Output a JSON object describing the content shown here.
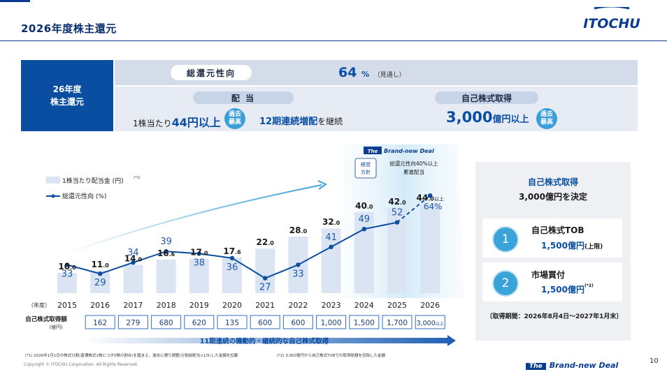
{
  "page": {
    "title": "2026年度株主還元",
    "logo_text": "ITOCHU",
    "page_number": "10",
    "copyright": "Copyright © ITOCHU Corporation. All Rights Reserved.",
    "footer_brand": "Brand-new Deal",
    "footer_brand_prefix": "The"
  },
  "summary": {
    "left_label_line1": "26年度",
    "left_label_line2": "株主還元",
    "total_return_label": "総還元性向",
    "total_return_value": "64",
    "total_return_unit": "%",
    "total_return_note": "（見通し）",
    "dividend_label": "配 当",
    "dividend_text_prefix": "1株当たり",
    "dividend_value": "44円以上",
    "dividend_badge_line1": "過去",
    "dividend_badge_line2": "最高",
    "dividend_streak": "12期連続増配",
    "dividend_streak_suffix": "を継続",
    "buyback_label": "自己株式取得",
    "buyback_value": "3,000",
    "buyback_unit": "億円以上",
    "buyback_badge_line1": "過去",
    "buyback_badge_line2": "最高"
  },
  "chart_header": {
    "brand_prefix": "The",
    "brand": "Brand-new Deal",
    "policy_box_line1": "経営",
    "policy_box_line2": "方針",
    "policy_text_line1": "総還元性向40%以上",
    "policy_text_line2": "累進配当"
  },
  "chart_data": {
    "type": "bar",
    "categories": [
      "2015",
      "2016",
      "2017",
      "2018",
      "2019",
      "2020",
      "2021",
      "2022",
      "2023",
      "2024",
      "2025",
      "2026"
    ],
    "x_axis_label": "（年度）",
    "series": [
      {
        "name": "1株当たり配当金 (円)",
        "values": [
          10.0,
          11.0,
          14.0,
          16.6,
          17.0,
          17.6,
          22.0,
          28.0,
          32.0,
          40.0,
          42.0,
          44.0
        ]
      },
      {
        "name": "総還元性向 (%)",
        "values": [
          33,
          29,
          34,
          39,
          38,
          36,
          27,
          33,
          41,
          49,
          52,
          64
        ]
      }
    ],
    "dividend_labels": [
      {
        "int": "10",
        "dec": ".0"
      },
      {
        "int": "11",
        "dec": ".0"
      },
      {
        "int": "14",
        "dec": ".0"
      },
      {
        "int": "16",
        "dec": ".6"
      },
      {
        "int": "17",
        "dec": ".0"
      },
      {
        "int": "17",
        "dec": ".6"
      },
      {
        "int": "22",
        "dec": ".0"
      },
      {
        "int": "28",
        "dec": ".0"
      },
      {
        "int": "32",
        "dec": ".0"
      },
      {
        "int": "40",
        "dec": ".0"
      },
      {
        "int": "42",
        "dec": ".0"
      },
      {
        "int": "44",
        "dec": ".0"
      }
    ],
    "last_dividend_suffix": "以上",
    "last_ratio_label": "64%",
    "legend_dividend": "1株当たり配当金 (円)",
    "legend_dividend_note": "(*1)",
    "legend_ratio": "総還元性向 (%)",
    "buyback_row_label_line1": "自己株式取得額",
    "buyback_row_label_line2": "(億円)",
    "buyback_amounts": [
      "162",
      "279",
      "680",
      "620",
      "135",
      "600",
      "600",
      "1,000",
      "1,500",
      "1,700",
      "3,000"
    ],
    "buyback_last_suffix": "以上",
    "buyback_arrow_text": "11期連続の機動的・継続的な自己株式取得",
    "colors": {
      "bar": "#dbe4f2",
      "line": "#0a4ea2",
      "accent": "#3aa3d8"
    }
  },
  "right_panel": {
    "title": "自己株式取得",
    "subtitle": "3,000億円を決定",
    "item1_number": "1",
    "item1_title": "自己株式TOB",
    "item1_value": "1,500億円",
    "item1_note": "(上限)",
    "item2_number": "2",
    "item2_title": "市場買付",
    "item2_value": "1,500億円",
    "item2_note": "(*2)",
    "period": "〔取得期間：2026年8月4日～2027年1月末〕"
  },
  "footnotes": {
    "note1": "(*1) 2026年1月1日の株式分割(普通株式1株につき5株の割合)を踏まえ、過去に遡り調整(分割前配当×1/5)した金額を記載",
    "note2": "(*2) 3,000億円から自己株式TOBでの取得総額を控除した金額"
  }
}
